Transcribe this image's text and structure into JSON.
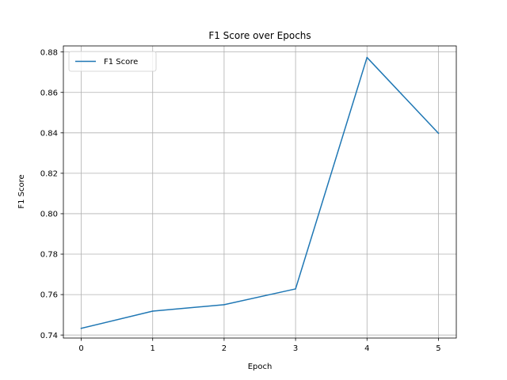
{
  "chart_data": {
    "type": "line",
    "title": "F1 Score over Epochs",
    "xlabel": "Epoch",
    "ylabel": "F1 Score",
    "x": [
      0,
      1,
      2,
      3,
      4,
      5
    ],
    "series": [
      {
        "name": "F1 Score",
        "values": [
          0.7433,
          0.7518,
          0.755,
          0.7628,
          0.8773,
          0.8398
        ],
        "color": "#1f77b4"
      }
    ],
    "xlim": [
      -0.25,
      5.25
    ],
    "ylim": [
      0.7385,
      0.883
    ],
    "xticks": [
      0,
      1,
      2,
      3,
      4,
      5
    ],
    "xtick_labels": [
      "0",
      "1",
      "2",
      "3",
      "4",
      "5"
    ],
    "yticks": [
      0.74,
      0.76,
      0.78,
      0.8,
      0.82,
      0.84,
      0.86,
      0.88
    ],
    "ytick_labels": [
      "0.74",
      "0.76",
      "0.78",
      "0.80",
      "0.82",
      "0.84",
      "0.86",
      "0.88"
    ],
    "grid": true,
    "legend_position": "top-left"
  }
}
